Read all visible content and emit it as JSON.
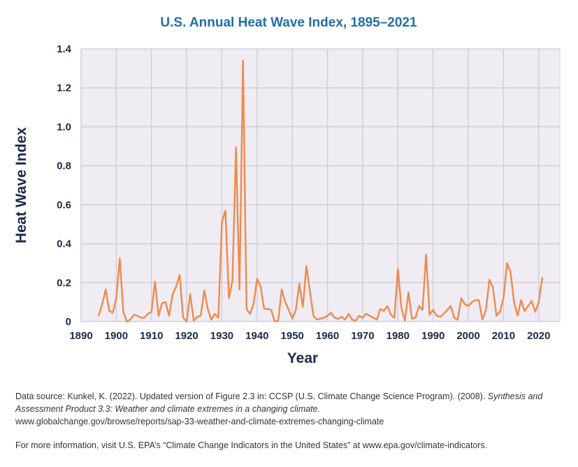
{
  "chart_data": {
    "type": "line",
    "title": "U.S. Annual Heat Wave Index, 1895–2021",
    "xlabel": "Year",
    "ylabel": "Heat Wave Index",
    "xlim": [
      1890,
      2026
    ],
    "ylim": [
      0,
      1.4
    ],
    "x_ticks": [
      1890,
      1900,
      1910,
      1920,
      1930,
      1940,
      1950,
      1960,
      1970,
      1980,
      1990,
      2000,
      2010,
      2020
    ],
    "y_ticks": [
      "0",
      "0.2",
      "0.4",
      "0.6",
      "0.8",
      "1.0",
      "1.2",
      "1.4"
    ],
    "grid": true,
    "line_color": "#f08a4b",
    "series": [
      {
        "x": [
          1895,
          1896,
          1897,
          1898,
          1899,
          1900,
          1901,
          1902,
          1903,
          1904,
          1905,
          1906,
          1907,
          1908,
          1909,
          1910,
          1911,
          1912,
          1913,
          1914,
          1915,
          1916,
          1917,
          1918,
          1919,
          1920,
          1921,
          1922,
          1923,
          1924,
          1925,
          1926,
          1927,
          1928,
          1929,
          1930,
          1931,
          1932,
          1933,
          1934,
          1935,
          1936,
          1937,
          1938,
          1939,
          1940,
          1941,
          1942,
          1943,
          1944,
          1945,
          1946,
          1947,
          1948,
          1949,
          1950,
          1951,
          1952,
          1953,
          1954,
          1955,
          1956,
          1957,
          1958,
          1959,
          1960,
          1961,
          1962,
          1963,
          1964,
          1965,
          1966,
          1967,
          1968,
          1969,
          1970,
          1971,
          1972,
          1973,
          1974,
          1975,
          1976,
          1977,
          1978,
          1979,
          1980,
          1981,
          1982,
          1983,
          1984,
          1985,
          1986,
          1987,
          1988,
          1989,
          1990,
          1991,
          1992,
          1993,
          1994,
          1995,
          1996,
          1997,
          1998,
          1999,
          2000,
          2001,
          2002,
          2003,
          2004,
          2005,
          2006,
          2007,
          2008,
          2009,
          2010,
          2011,
          2012,
          2013,
          2014,
          2015,
          2016,
          2017,
          2018,
          2019,
          2020,
          2021
        ],
        "values": [
          0.03,
          0.09,
          0.165,
          0.055,
          0.045,
          0.12,
          0.325,
          0.05,
          0.0,
          0.01,
          0.035,
          0.03,
          0.02,
          0.02,
          0.04,
          0.05,
          0.205,
          0.03,
          0.095,
          0.1,
          0.03,
          0.14,
          0.18,
          0.24,
          0.02,
          0.0,
          0.14,
          0.005,
          0.025,
          0.03,
          0.16,
          0.065,
          0.01,
          0.04,
          0.02,
          0.51,
          0.57,
          0.12,
          0.21,
          0.895,
          0.165,
          1.34,
          0.065,
          0.04,
          0.09,
          0.22,
          0.18,
          0.065,
          0.065,
          0.06,
          0.0,
          0.005,
          0.165,
          0.1,
          0.06,
          0.015,
          0.06,
          0.195,
          0.075,
          0.285,
          0.155,
          0.03,
          0.01,
          0.015,
          0.02,
          0.03,
          0.045,
          0.02,
          0.015,
          0.025,
          0.01,
          0.04,
          0.01,
          0.005,
          0.03,
          0.02,
          0.04,
          0.03,
          0.02,
          0.01,
          0.065,
          0.055,
          0.08,
          0.035,
          0.02,
          0.27,
          0.07,
          0.005,
          0.15,
          0.015,
          0.02,
          0.08,
          0.06,
          0.345,
          0.035,
          0.06,
          0.03,
          0.025,
          0.04,
          0.06,
          0.08,
          0.02,
          0.01,
          0.12,
          0.09,
          0.08,
          0.1,
          0.11,
          0.11,
          0.01,
          0.06,
          0.215,
          0.175,
          0.03,
          0.05,
          0.12,
          0.3,
          0.255,
          0.1,
          0.03,
          0.11,
          0.055,
          0.08,
          0.105,
          0.05,
          0.1,
          0.225
        ]
      }
    ]
  },
  "footer": {
    "source_prefix": "Data source:  Kunkel, K. (2022). Updated version of Figure 2.3 in: CCSP (U.S. Climate Change Science Program). (2008). ",
    "source_italic": "Synthesis and Assessment Product 3.3: Weather and climate extremes in a changing climate.",
    "source_url": "www.globalchange.gov/browse/reports/sap-33-weather-and-climate-extremes-changing-climate",
    "more_info": "For more information, visit U.S. EPA’s “Climate Change Indicators in the United States” at www.epa.gov/climate-indicators."
  }
}
